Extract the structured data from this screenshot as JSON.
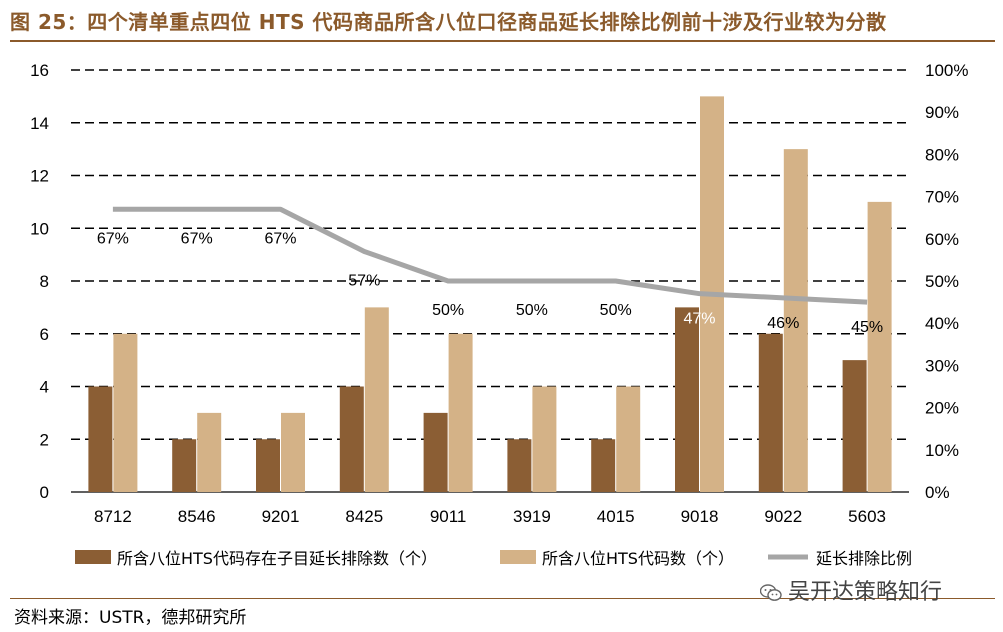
{
  "figure": {
    "title": "图 25：四个清单重点四位 HTS 代码商品所含八位口径商品延长排除比例前十涉及行业较为分散",
    "source": "资料来源：USTR，德邦研究所",
    "watermark": "吴开达策略知行",
    "watermark_icon": "wechat-icon"
  },
  "colors": {
    "title": "#8B5A2B",
    "dark_bar": "#8B5E34",
    "light_bar": "#D4B287",
    "line": "#A6A6A6"
  },
  "chart_data": {
    "type": "bar",
    "categories": [
      "8712",
      "8546",
      "9201",
      "8425",
      "9011",
      "3919",
      "4015",
      "9018",
      "9022",
      "5603"
    ],
    "series": [
      {
        "name": "所含八位HTS代码存在子目延长排除数（个）",
        "kind": "bar",
        "axis": "left",
        "values": [
          4,
          2,
          2,
          4,
          3,
          2,
          2,
          7,
          6,
          5
        ]
      },
      {
        "name": "所含八位HTS代码数（个）",
        "kind": "bar",
        "axis": "left",
        "values": [
          6,
          3,
          3,
          7,
          6,
          4,
          4,
          15,
          13,
          11
        ]
      },
      {
        "name": "延长排除比例",
        "kind": "line",
        "axis": "right",
        "values": [
          67,
          67,
          67,
          57,
          50,
          50,
          50,
          47,
          46,
          45
        ]
      }
    ],
    "data_labels": [
      "67%",
      "67%",
      "67%",
      "57%",
      "50%",
      "50%",
      "50%",
      "47%",
      "46%",
      "45%"
    ],
    "left_axis": {
      "ylim": [
        0,
        16
      ],
      "ticks": [
        "0",
        "2",
        "4",
        "6",
        "8",
        "10",
        "12",
        "14",
        "16"
      ]
    },
    "right_axis": {
      "ylim": [
        0,
        100
      ],
      "ticks": [
        "0%",
        "10%",
        "20%",
        "30%",
        "40%",
        "50%",
        "60%",
        "70%",
        "80%",
        "90%",
        "100%"
      ]
    },
    "grid": true,
    "legend_position": "bottom"
  }
}
